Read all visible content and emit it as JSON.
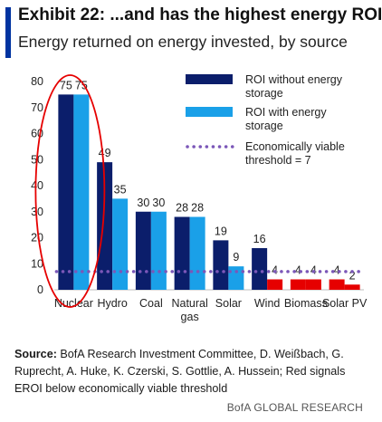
{
  "header": {
    "title": "Exhibit 22: ...and has the highest energy ROI",
    "subtitle": "Energy returned on energy invested, by source"
  },
  "chart_data": {
    "type": "bar",
    "categories": [
      "Nuclear",
      "Hydro",
      "Coal",
      "Natural gas",
      "Solar",
      "Wind",
      "Biomass",
      "Solar PV"
    ],
    "series": [
      {
        "name": "ROI without energy storage",
        "values": [
          75,
          49,
          30,
          28,
          19,
          16,
          null,
          null
        ],
        "color": "#0b1e6b"
      },
      {
        "name": "ROI with energy storage",
        "values": [
          75,
          35,
          30,
          28,
          9,
          4,
          4,
          4
        ],
        "color": "#1aa0e8"
      },
      {
        "name": "",
        "values": [
          null,
          null,
          null,
          null,
          null,
          null,
          4,
          2
        ],
        "color": "#e60000"
      }
    ],
    "data_labels": [
      [
        "75",
        "75"
      ],
      [
        "49",
        "35"
      ],
      [
        "30",
        "30"
      ],
      [
        "28",
        "28"
      ],
      [
        "19",
        "9"
      ],
      [
        "16",
        "4"
      ],
      [
        "4",
        "4"
      ],
      [
        "4",
        "2"
      ]
    ],
    "reference_line": {
      "name": "Economically viable threshold = 7",
      "value": 7,
      "color": "#7b57b8",
      "style": "dotted"
    },
    "highlight": {
      "category": "Nuclear",
      "shape": "ellipse",
      "color": "#e60000"
    },
    "legend_labels": [
      [
        "ROI without energy",
        "storage"
      ],
      [
        "ROI with energy",
        "storage"
      ],
      [
        "Economically viable",
        "threshold = 7"
      ]
    ],
    "yticks": [
      0,
      10,
      20,
      30,
      40,
      50,
      60,
      70,
      80
    ],
    "ylim": [
      0,
      80
    ],
    "legend_position": "top-right",
    "grid": false,
    "xlabel": "",
    "ylabel": ""
  },
  "source": {
    "label": "Source:",
    "text": "BofA Research Investment Committee, D. Weißbach, G. Ruprecht, A. Huke, K. Czerski, S. Gottlie, A. Hussein; Red signals EROI below economically viable threshold"
  },
  "footer": {
    "brand": "BofA GLOBAL RESEARCH"
  }
}
